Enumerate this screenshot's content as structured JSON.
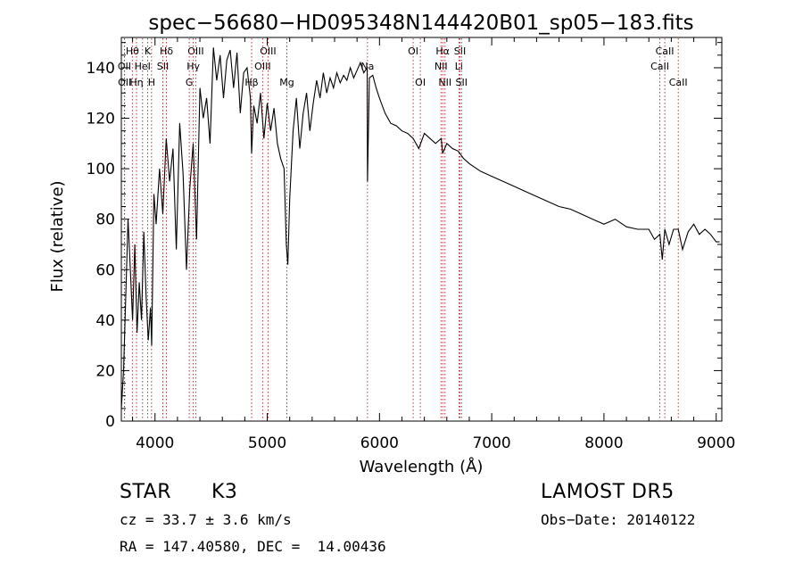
{
  "chart_data": {
    "type": "line",
    "title": "spec−56680−HD095348N144420B01_sp05−183.fits",
    "xlabel": "Wavelength (Å)",
    "ylabel": "Flux (relative)",
    "xlim": [
      3700,
      9050
    ],
    "ylim": [
      0,
      152
    ],
    "xticks": [
      4000,
      5000,
      6000,
      7000,
      8000,
      9000
    ],
    "yticks": [
      0,
      20,
      40,
      60,
      80,
      100,
      120,
      140
    ],
    "series": [
      {
        "color": "#000000",
        "x": [
          3700,
          3720,
          3740,
          3760,
          3780,
          3800,
          3820,
          3840,
          3860,
          3880,
          3900,
          3920,
          3940,
          3960,
          3970,
          3990,
          4010,
          4040,
          4070,
          4100,
          4130,
          4160,
          4190,
          4220,
          4250,
          4280,
          4310,
          4340,
          4370,
          4400,
          4430,
          4460,
          4490,
          4520,
          4550,
          4580,
          4610,
          4640,
          4670,
          4700,
          4730,
          4760,
          4790,
          4820,
          4850,
          4861,
          4880,
          4910,
          4940,
          4970,
          5000,
          5030,
          5060,
          5090,
          5120,
          5150,
          5170,
          5183,
          5200,
          5230,
          5260,
          5290,
          5320,
          5350,
          5380,
          5410,
          5440,
          5470,
          5500,
          5530,
          5560,
          5590,
          5620,
          5650,
          5680,
          5710,
          5740,
          5770,
          5800,
          5830,
          5860,
          5890,
          5893,
          5910,
          5940,
          5970,
          6000,
          6050,
          6100,
          6150,
          6200,
          6250,
          6300,
          6350,
          6400,
          6450,
          6500,
          6550,
          6563,
          6600,
          6650,
          6700,
          6750,
          6800,
          6900,
          7000,
          7100,
          7200,
          7300,
          7400,
          7500,
          7600,
          7700,
          7800,
          7900,
          8000,
          8100,
          8200,
          8300,
          8400,
          8450,
          8498,
          8520,
          8542,
          8580,
          8620,
          8662,
          8700,
          8750,
          8800,
          8850,
          8900,
          8950,
          9000,
          9030
        ],
        "y": [
          5,
          20,
          50,
          80,
          60,
          40,
          70,
          35,
          55,
          40,
          75,
          50,
          32,
          45,
          30,
          90,
          78,
          100,
          82,
          112,
          95,
          108,
          68,
          118,
          98,
          60,
          92,
          110,
          72,
          132,
          120,
          128,
          110,
          148,
          135,
          145,
          128,
          143,
          147,
          132,
          146,
          122,
          138,
          140,
          128,
          106,
          125,
          118,
          130,
          112,
          126,
          115,
          124,
          110,
          104,
          100,
          70,
          62,
          88,
          115,
          128,
          108,
          122,
          130,
          115,
          126,
          135,
          128,
          138,
          130,
          136,
          132,
          138,
          134,
          137,
          135,
          140,
          136,
          139,
          142,
          138,
          140,
          95,
          136,
          137,
          132,
          128,
          122,
          118,
          117,
          115,
          114,
          112,
          108,
          114,
          112,
          110,
          112,
          106,
          110,
          108,
          107,
          104,
          102,
          99,
          97,
          95,
          93,
          91,
          89,
          87,
          85,
          84,
          82,
          80,
          78,
          80,
          77,
          76,
          76,
          72,
          74,
          64,
          76,
          70,
          76,
          76,
          68,
          75,
          78,
          74,
          76,
          74,
          71,
          71
        ]
      }
    ],
    "line_markers": [
      {
        "label": "Hθ",
        "x": 3798,
        "row": 1
      },
      {
        "label": "K",
        "x": 3934,
        "row": 1
      },
      {
        "label": "Hδ",
        "x": 4102,
        "row": 1
      },
      {
        "label": "OII",
        "x": 3727,
        "row": 2
      },
      {
        "label": "HeI",
        "x": 3889,
        "row": 2
      },
      {
        "label": "SII",
        "x": 4070,
        "row": 2
      },
      {
        "label": "OII",
        "x": 3729,
        "row": 3
      },
      {
        "label": "Hη",
        "x": 3835,
        "row": 3
      },
      {
        "label": "H",
        "x": 3969,
        "row": 3
      },
      {
        "label": "OIII",
        "x": 4363,
        "row": 1
      },
      {
        "label": "Hγ",
        "x": 4341,
        "row": 2
      },
      {
        "label": "G",
        "x": 4305,
        "row": 3
      },
      {
        "label": "OIII",
        "x": 5007,
        "row": 1
      },
      {
        "label": "OIII",
        "x": 4959,
        "row": 2
      },
      {
        "label": "Hβ",
        "x": 4861,
        "row": 3
      },
      {
        "label": "Mg",
        "x": 5175,
        "row": 3
      },
      {
        "label": "Na",
        "x": 5893,
        "row": 2
      },
      {
        "label": "OI",
        "x": 6300,
        "row": 1
      },
      {
        "label": "OI",
        "x": 6364,
        "row": 3
      },
      {
        "label": "Hα",
        "x": 6563,
        "row": 1
      },
      {
        "label": "SII",
        "x": 6717,
        "row": 1
      },
      {
        "label": "NII",
        "x": 6548,
        "row": 2
      },
      {
        "label": "Li",
        "x": 6708,
        "row": 2
      },
      {
        "label": "NII",
        "x": 6584,
        "row": 3
      },
      {
        "label": "SII",
        "x": 6731,
        "row": 3
      },
      {
        "label": "CaII",
        "x": 8542,
        "row": 1
      },
      {
        "label": "CaII",
        "x": 8498,
        "row": 2
      },
      {
        "label": "CaII",
        "x": 8662,
        "row": 3
      }
    ]
  },
  "info": {
    "class_label": "STAR",
    "subclass": "K3",
    "survey": "LAMOST DR5",
    "cz": "cz = 33.7 ± 3.6 km/s",
    "obs_date": "Obs−Date: 20140122",
    "coords": "RA = 147.40580, DEC =  14.00436"
  }
}
